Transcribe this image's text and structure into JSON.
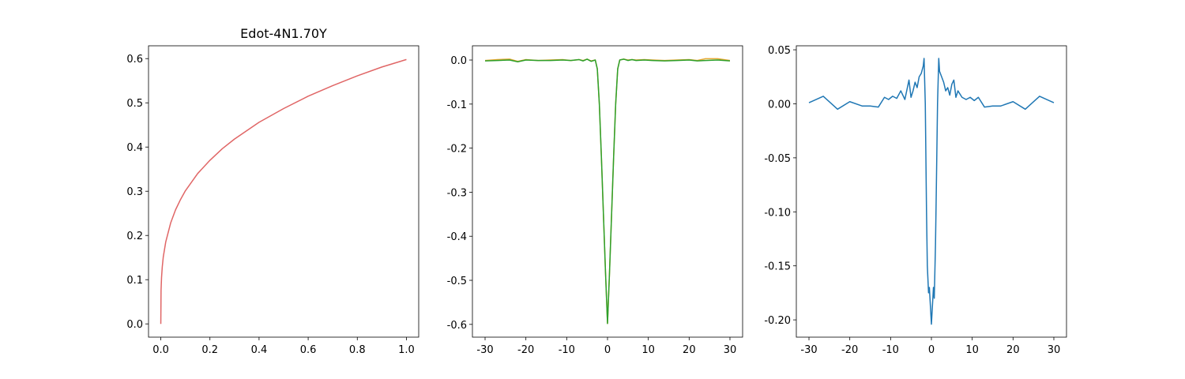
{
  "chart_data": [
    {
      "type": "line",
      "title": "Edot-4N1.70Y",
      "x": [
        0,
        0.001,
        0.003,
        0.006,
        0.01,
        0.02,
        0.04,
        0.06,
        0.08,
        0.1,
        0.15,
        0.2,
        0.25,
        0.3,
        0.4,
        0.5,
        0.6,
        0.7,
        0.8,
        0.9,
        1.0
      ],
      "series": [
        {
          "color": "#e06666",
          "values": [
            0,
            0.0755,
            0.105,
            0.129,
            0.151,
            0.185,
            0.228,
            0.258,
            0.281,
            0.301,
            0.34,
            0.37,
            0.396,
            0.418,
            0.456,
            0.487,
            0.515,
            0.539,
            0.561,
            0.581,
            0.598
          ]
        }
      ],
      "xlim": [
        -0.05,
        1.05
      ],
      "xticks": [
        {
          "value": 0,
          "label": "0.0"
        },
        0.2,
        0.4,
        0.6,
        0.8,
        {
          "value": 1,
          "label": "1.0"
        }
      ],
      "ylim": [
        -0.03,
        0.629
      ],
      "yticks": [
        {
          "value": 0,
          "label": "0.0"
        },
        0.1,
        0.2,
        0.3,
        0.4,
        0.5,
        0.6
      ]
    },
    {
      "type": "line",
      "x": [
        -30,
        -27,
        -24,
        -22,
        -20,
        -17,
        -14,
        -11,
        -9,
        -7,
        -6,
        -5,
        -4,
        -3,
        -2.5,
        -2,
        -1.5,
        -1,
        -0.5,
        0,
        0.5,
        1,
        1.5,
        2,
        2.5,
        3,
        4,
        5,
        6,
        7,
        9,
        11,
        14,
        17,
        20,
        22,
        24,
        27,
        30
      ],
      "series": [
        {
          "color": "#e8a830",
          "values": [
            -0.001,
            0.001,
            0.002,
            -0.003,
            0.001,
            -0.001,
            0,
            0.001,
            -0.001,
            0.001,
            -0.001,
            0.002,
            -0.002,
            0,
            -0.02,
            -0.1,
            -0.22,
            -0.35,
            -0.48,
            -0.598,
            -0.48,
            -0.35,
            -0.22,
            -0.1,
            -0.02,
            0,
            0.002,
            0,
            0.001,
            0,
            0.001,
            0,
            -0.001,
            0,
            0.001,
            -0.001,
            0.003,
            0.003,
            -0.001
          ]
        },
        {
          "color": "#2ca02c",
          "values": [
            -0.002,
            -0.001,
            0,
            -0.004,
            0,
            -0.001,
            -0.001,
            0,
            -0.001,
            0.001,
            -0.002,
            0.002,
            -0.003,
            0,
            -0.02,
            -0.1,
            -0.22,
            -0.35,
            -0.48,
            -0.598,
            -0.48,
            -0.35,
            -0.22,
            -0.1,
            -0.02,
            0,
            0.002,
            -0.001,
            0.001,
            -0.001,
            0,
            -0.001,
            -0.002,
            -0.001,
            0,
            -0.002,
            -0.001,
            0,
            -0.002
          ]
        }
      ],
      "xlim": [
        -33.1,
        33.1
      ],
      "xticks": [
        -30,
        -20,
        -10,
        0,
        10,
        20,
        30
      ],
      "ylim": [
        -0.629,
        0.0323
      ],
      "yticks": [
        {
          "value": 0,
          "label": "0.0"
        },
        -0.1,
        -0.2,
        -0.3,
        -0.4,
        -0.5,
        -0.6
      ]
    },
    {
      "type": "line",
      "x": [
        -30,
        -26.5,
        -23,
        -20,
        -17,
        -15,
        -13,
        -11.5,
        -10.5,
        -9.5,
        -8.5,
        -7.5,
        -6.5,
        -5.5,
        -5,
        -4.5,
        -4,
        -3.5,
        -3,
        -2.5,
        -2,
        -1.8,
        -1.5,
        -1.2,
        -1,
        -0.7,
        -0.5,
        0,
        0.5,
        0.7,
        1,
        1.2,
        1.5,
        1.8,
        2,
        2.5,
        3,
        3.5,
        4,
        4.5,
        5,
        5.5,
        6,
        6.5,
        7.5,
        8.5,
        9.5,
        10.5,
        11.5,
        13,
        15,
        17,
        20,
        23,
        26.5,
        30
      ],
      "series": [
        {
          "color": "#1f77b4",
          "values": [
            0.001,
            0.007,
            -0.005,
            0.002,
            -0.002,
            -0.002,
            -0.003,
            0.006,
            0.004,
            0.007,
            0.005,
            0.012,
            0.004,
            0.022,
            0.006,
            0.012,
            0.02,
            0.015,
            0.025,
            0.028,
            0.035,
            0.042,
            0.0,
            -0.1,
            -0.15,
            -0.175,
            -0.17,
            -0.204,
            -0.17,
            -0.18,
            -0.13,
            -0.08,
            0.0,
            0.042,
            0.03,
            0.025,
            0.02,
            0.012,
            0.015,
            0.008,
            0.018,
            0.022,
            0.006,
            0.012,
            0.006,
            0.004,
            0.006,
            0.003,
            0.006,
            -0.003,
            -0.002,
            -0.002,
            0.002,
            -0.005,
            0.007,
            0.001
          ]
        }
      ],
      "xlim": [
        -33.1,
        33.1
      ],
      "xticks": [
        -30,
        -20,
        -10,
        0,
        10,
        20,
        30
      ],
      "ylim": [
        -0.216,
        0.0537
      ],
      "yticks": [
        0.05,
        {
          "value": 0,
          "label": "0.00"
        },
        -0.05,
        {
          "value": -0.1,
          "label": "-0.10"
        },
        -0.15,
        {
          "value": -0.2,
          "label": "-0.20"
        }
      ]
    }
  ]
}
